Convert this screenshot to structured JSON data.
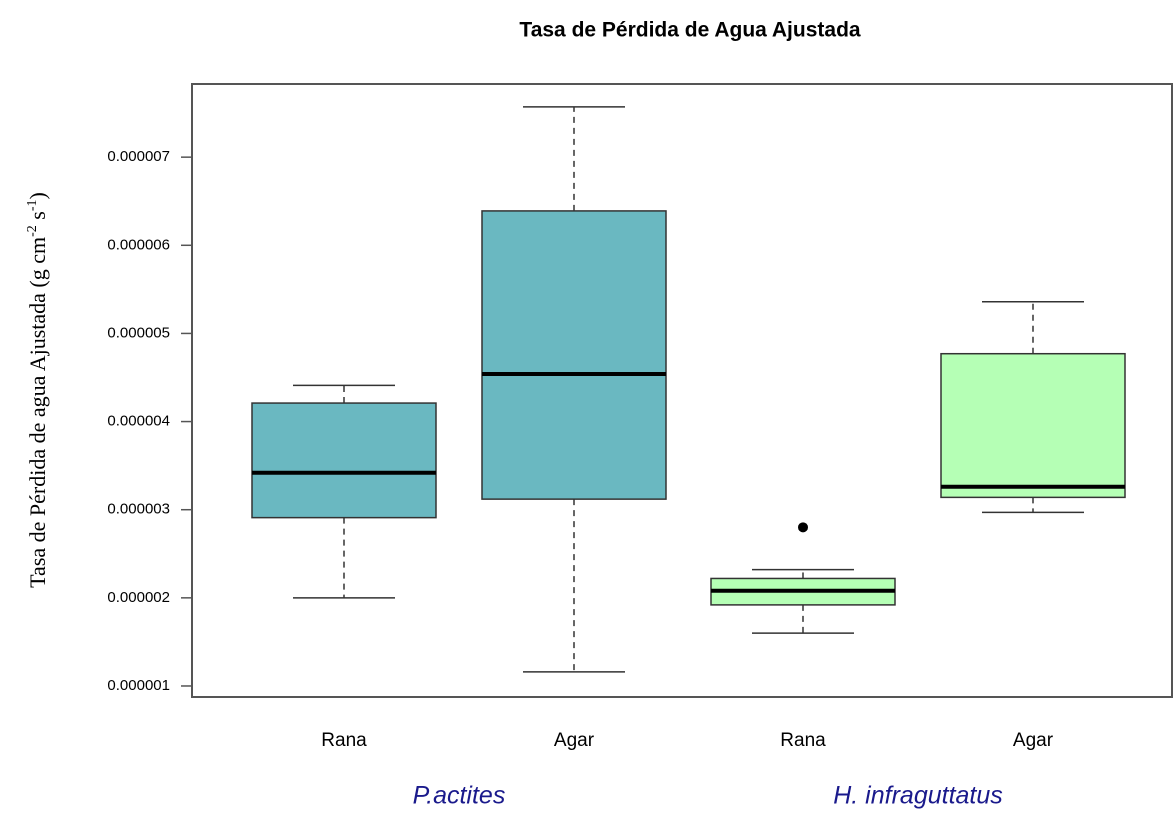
{
  "chart_data": {
    "type": "box",
    "title": "Tasa de Pérdida de Agua Ajustada",
    "ylabel_parts": [
      "Tasa de Pérdida de agua Ajustada (g cm",
      "-2",
      " s",
      "-1",
      ")"
    ],
    "ylim": [
      8.75e-07,
      7.83e-06
    ],
    "yticks": [
      1e-06,
      2e-06,
      3e-06,
      4e-06,
      5e-06,
      6e-06,
      7e-06
    ],
    "groups": [
      {
        "name": "P.actites",
        "color": "#6ab8c1",
        "boxes": [
          {
            "category": "Rana",
            "whisker_low": 2e-06,
            "q1": 2.91e-06,
            "median": 3.42e-06,
            "q3": 4.21e-06,
            "whisker_high": 4.41e-06
          },
          {
            "category": "Agar",
            "whisker_low": 1.16e-06,
            "q1": 3.12e-06,
            "median": 4.54e-06,
            "q3": 6.39e-06,
            "whisker_high": 7.57e-06
          }
        ]
      },
      {
        "name": "H. infraguttatus",
        "color": "#b5ffb5",
        "boxes": [
          {
            "category": "Rana",
            "whisker_low": 1.6e-06,
            "q1": 1.92e-06,
            "median": 2.08e-06,
            "q3": 2.22e-06,
            "whisker_high": 2.32e-06,
            "outliers": [
              2.8e-06
            ]
          },
          {
            "category": "Agar",
            "whisker_low": 2.97e-06,
            "q1": 3.14e-06,
            "median": 3.26e-06,
            "q3": 4.77e-06,
            "whisker_high": 5.36e-06
          }
        ]
      }
    ]
  }
}
